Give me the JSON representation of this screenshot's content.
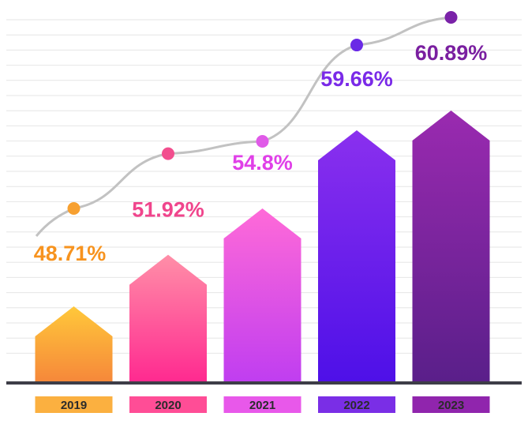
{
  "chart_data": {
    "type": "bar",
    "title": "",
    "xlabel": "",
    "ylabel": "",
    "categories": [
      "2019",
      "2020",
      "2021",
      "2022",
      "2023"
    ],
    "values": [
      48.71,
      51.92,
      54.8,
      59.66,
      60.89
    ],
    "value_labels": [
      "48.71%",
      "51.92%",
      "54.8%",
      "59.66%",
      "60.89%"
    ],
    "ylim": [
      45,
      62
    ],
    "grid": true,
    "trend_line": true,
    "bar_shape": "arrow-up"
  },
  "colors": {
    "bars_top": [
      "#ffc83a",
      "#ff8fa8",
      "#ff6ad8",
      "#8a30ee",
      "#9a2ab0"
    ],
    "bars_bottom": [
      "#f6883a",
      "#ff2a90",
      "#c03ef0",
      "#4e10e8",
      "#5a1f8a"
    ],
    "labels": [
      "#f7931e",
      "#f0458c",
      "#e040e8",
      "#7a2ae8",
      "#7a1fa0"
    ],
    "year_boxes": [
      "#fbb040",
      "#ff4d96",
      "#e858ea",
      "#7a2ee6",
      "#9025ad"
    ],
    "dots": [
      "#f7a030",
      "#f24e8e",
      "#e05ae8",
      "#6a2ae6",
      "#7a22a8"
    ],
    "trend_line": "#c2c2c2",
    "grid": "#e6e6e6",
    "axis": "#3d3d47"
  }
}
